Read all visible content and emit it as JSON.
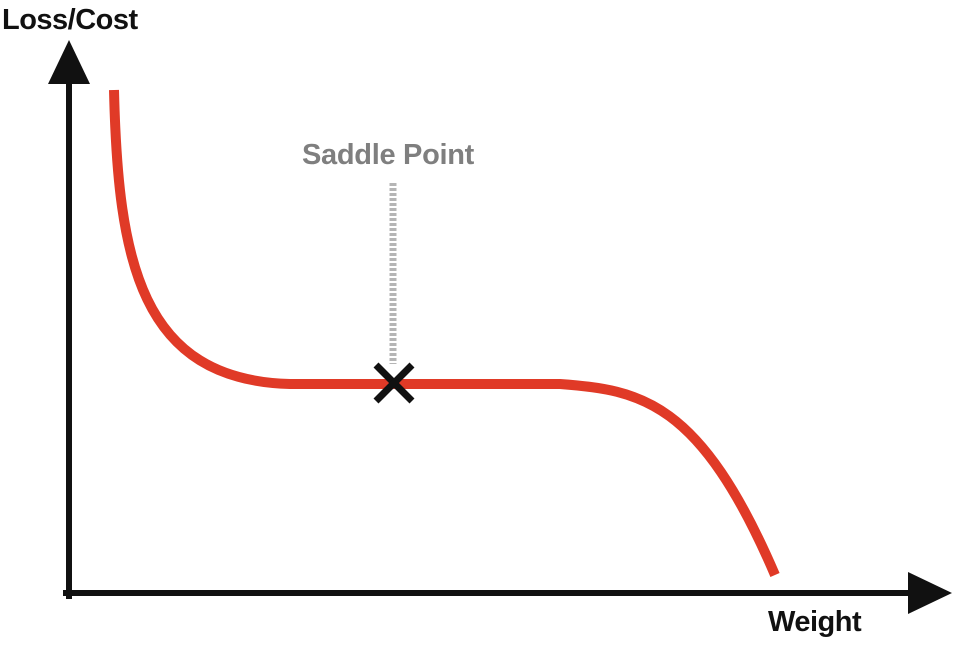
{
  "diagram": {
    "y_axis_label": "Loss/Cost",
    "x_axis_label": "Weight",
    "annotation": "Saddle Point",
    "marker_icon": "x-mark-icon",
    "colors": {
      "curve": "#e03a27",
      "axes": "#111111",
      "marker": "#111111",
      "annotation": "#7f7f7f",
      "leader": "#b5b5b5"
    }
  }
}
